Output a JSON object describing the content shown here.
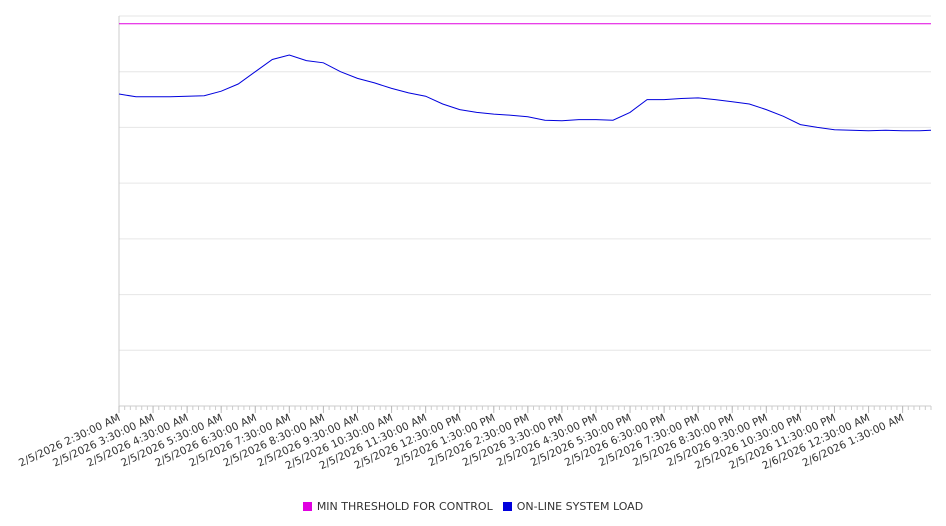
{
  "chart_data": {
    "type": "line",
    "x_ticks": [
      "2/5/2026 2:30:00 AM",
      "2/5/2026 3:30:00 AM",
      "2/5/2026 4:30:00 AM",
      "2/5/2026 5:30:00 AM",
      "2/5/2026 6:30:00 AM",
      "2/5/2026 7:30:00 AM",
      "2/5/2026 8:30:00 AM",
      "2/5/2026 9:30:00 AM",
      "2/5/2026 10:30:00 AM",
      "2/5/2026 11:30:00 AM",
      "2/5/2026 12:30:00 PM",
      "2/5/2026 1:30:00 PM",
      "2/5/2026 2:30:00 PM",
      "2/5/2026 3:30:00 PM",
      "2/5/2026 4:30:00 PM",
      "2/5/2026 5:30:00 PM",
      "2/5/2026 6:30:00 PM",
      "2/5/2026 7:30:00 PM",
      "2/5/2026 8:30:00 PM",
      "2/5/2026 9:30:00 PM",
      "2/5/2026 10:30:00 PM",
      "2/5/2026 11:30:00 PM",
      "2/6/2026 12:30:00 AM",
      "2/6/2026 1:30:00 AM"
    ],
    "x_start": "2/5/2026 2:30:00 AM",
    "x_end": "2/6/2026 2:20:00 AM",
    "ylim": [
      0,
      7
    ],
    "y_tick_labels_shown": false,
    "grid": "horizontal",
    "legend_position": "bottom",
    "series": [
      {
        "name": "MIN THRESHOLD FOR CONTROL",
        "color": "#e000e0",
        "x": [
          "2/5/2026 2:30:00 AM",
          "2/6/2026 2:20:00 AM"
        ],
        "values": [
          6.86,
          6.86
        ]
      },
      {
        "name": "ON-LINE SYSTEM LOAD",
        "color": "#0000dd",
        "x": [
          "2/5/2026 2:30:00 AM",
          "2/5/2026 3:00:00 AM",
          "2/5/2026 3:30:00 AM",
          "2/5/2026 4:00:00 AM",
          "2/5/2026 4:30:00 AM",
          "2/5/2026 5:00:00 AM",
          "2/5/2026 5:30:00 AM",
          "2/5/2026 6:00:00 AM",
          "2/5/2026 6:30:00 AM",
          "2/5/2026 7:00:00 AM",
          "2/5/2026 7:30:00 AM",
          "2/5/2026 8:00:00 AM",
          "2/5/2026 8:30:00 AM",
          "2/5/2026 9:00:00 AM",
          "2/5/2026 9:30:00 AM",
          "2/5/2026 10:00:00 AM",
          "2/5/2026 10:30:00 AM",
          "2/5/2026 11:00:00 AM",
          "2/5/2026 11:30:00 AM",
          "2/5/2026 12:00:00 PM",
          "2/5/2026 12:30:00 PM",
          "2/5/2026 1:00:00 PM",
          "2/5/2026 1:30:00 PM",
          "2/5/2026 2:00:00 PM",
          "2/5/2026 2:30:00 PM",
          "2/5/2026 3:00:00 PM",
          "2/5/2026 3:30:00 PM",
          "2/5/2026 4:00:00 PM",
          "2/5/2026 4:30:00 PM",
          "2/5/2026 5:00:00 PM",
          "2/5/2026 5:30:00 PM",
          "2/5/2026 6:00:00 PM",
          "2/5/2026 6:30:00 PM",
          "2/5/2026 7:00:00 PM",
          "2/5/2026 7:30:00 PM",
          "2/5/2026 8:00:00 PM",
          "2/5/2026 8:30:00 PM",
          "2/5/2026 9:00:00 PM",
          "2/5/2026 9:30:00 PM",
          "2/5/2026 10:00:00 PM",
          "2/5/2026 10:30:00 PM",
          "2/5/2026 11:00:00 PM",
          "2/5/2026 11:30:00 PM",
          "2/6/2026 12:00:00 AM",
          "2/6/2026 12:30:00 AM",
          "2/6/2026 1:00:00 AM",
          "2/6/2026 1:30:00 AM",
          "2/6/2026 2:00:00 AM",
          "2/6/2026 2:20:00 AM"
        ],
        "values": [
          5.6,
          5.55,
          5.55,
          5.55,
          5.56,
          5.57,
          5.65,
          5.78,
          6.0,
          6.22,
          6.3,
          6.2,
          6.16,
          6.0,
          5.88,
          5.8,
          5.7,
          5.62,
          5.56,
          5.42,
          5.32,
          5.27,
          5.24,
          5.22,
          5.19,
          5.13,
          5.12,
          5.14,
          5.14,
          5.13,
          5.27,
          5.5,
          5.5,
          5.52,
          5.53,
          5.5,
          5.46,
          5.42,
          5.32,
          5.2,
          5.05,
          5.0,
          4.96,
          4.95,
          4.94,
          4.95,
          4.94,
          4.94,
          4.95
        ]
      }
    ]
  }
}
